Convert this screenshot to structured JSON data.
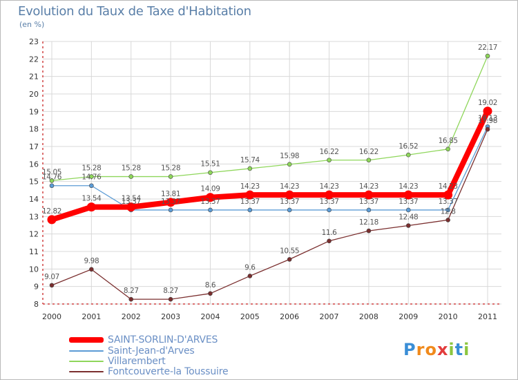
{
  "header": {
    "title": "Evolution du Taux de Taxe d'Habitation",
    "subtitle": "(en %)"
  },
  "logo": {
    "letters": [
      "P",
      "r",
      "o",
      "x",
      "i",
      "t",
      "i"
    ],
    "colors": [
      "#3a8ed6",
      "#f08a1c",
      "#f08a1c",
      "#e23c3c",
      "#8cc63f",
      "#3a8ed6",
      "#8cc63f"
    ]
  },
  "chart_data": {
    "type": "line",
    "x": [
      "2000",
      "2001",
      "2002",
      "2003",
      "2004",
      "2005",
      "2006",
      "2007",
      "2008",
      "2009",
      "2010",
      "2011"
    ],
    "ylim": [
      8,
      23
    ],
    "yticks": [
      8,
      9,
      10,
      11,
      12,
      13,
      14,
      15,
      16,
      17,
      18,
      19,
      20,
      21,
      22,
      23
    ],
    "grid": true,
    "legend_position": "bottom-left",
    "series": [
      {
        "name": "SAINT-SORLIN-D'ARVES",
        "color": "#ff0000",
        "width": 8,
        "values": [
          12.82,
          13.54,
          13.54,
          13.81,
          14.09,
          14.23,
          14.23,
          14.23,
          14.23,
          14.23,
          14.23,
          19.02
        ],
        "labels": [
          "12.82",
          "13.54",
          "13.54",
          "13.81",
          "14.09",
          "14.23",
          "14.23",
          "14.23",
          "14.23",
          "14.23",
          "14.23",
          "19.02"
        ]
      },
      {
        "name": "Saint-Jean-d'Arves",
        "color": "#5b9bd5",
        "width": 1.3,
        "values": [
          14.76,
          14.76,
          13.37,
          13.37,
          13.37,
          13.37,
          13.37,
          13.37,
          13.37,
          13.37,
          13.37,
          18.13
        ],
        "labels": [
          "14.76",
          "14.76",
          "13.37",
          "13.37",
          "13.37",
          "13.37",
          "13.37",
          "13.37",
          "13.37",
          "13.37",
          "13.37",
          "18.13"
        ]
      },
      {
        "name": "Villarembert",
        "color": "#8ed65a",
        "width": 1.3,
        "values": [
          15.05,
          15.28,
          15.28,
          15.28,
          15.51,
          15.74,
          15.98,
          16.22,
          16.22,
          16.52,
          16.85,
          22.17
        ],
        "labels": [
          "15.05",
          "15.28",
          "15.28",
          "15.28",
          "15.51",
          "15.74",
          "15.98",
          "16.22",
          "16.22",
          "16.52",
          "16.85",
          "22.17"
        ]
      },
      {
        "name": "Fontcouverte-la Toussuire",
        "color": "#7a2e2e",
        "width": 1.3,
        "values": [
          9.07,
          9.98,
          8.27,
          8.27,
          8.6,
          9.6,
          10.55,
          11.6,
          12.18,
          12.48,
          12.8,
          17.98
        ],
        "labels": [
          "9.07",
          "9.98",
          "8.27",
          "8.27",
          "8.6",
          "9.6",
          "10.55",
          "11.6",
          "12.18",
          "12.48",
          "12.8",
          "17.98"
        ]
      }
    ]
  }
}
